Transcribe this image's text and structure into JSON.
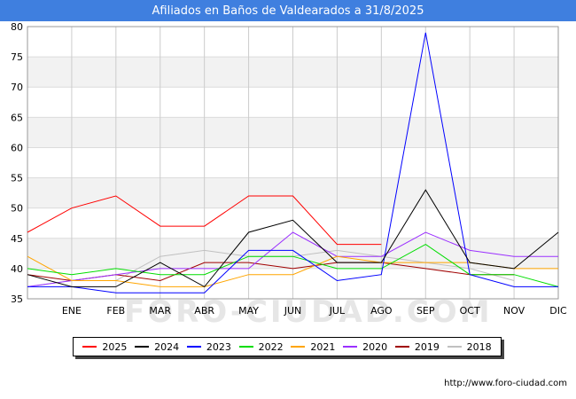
{
  "chart_data": {
    "type": "line",
    "title": "Afiliados en Baños de Valdearados a 31/8/2025",
    "xlabel": "",
    "ylabel": "",
    "categories": [
      "",
      "ENE",
      "FEB",
      "MAR",
      "ABR",
      "MAY",
      "JUN",
      "JUL",
      "AGO",
      "SEP",
      "OCT",
      "NOV",
      "DIC"
    ],
    "ylim": [
      35,
      80
    ],
    "yticks": [
      35,
      40,
      45,
      50,
      55,
      60,
      65,
      70,
      75,
      80
    ],
    "grid": true,
    "legend_position": "bottom",
    "series": [
      {
        "name": "2025",
        "color": "#ff0000",
        "values": [
          46,
          50,
          52,
          47,
          47,
          52,
          52,
          44,
          44,
          null,
          null,
          null,
          null
        ]
      },
      {
        "name": "2024",
        "color": "#000000",
        "values": [
          39,
          37,
          37,
          41,
          37,
          46,
          48,
          41,
          41,
          53,
          41,
          40,
          46
        ]
      },
      {
        "name": "2023",
        "color": "#0000ff",
        "values": [
          37,
          37,
          36,
          36,
          36,
          43,
          43,
          38,
          39,
          79,
          39,
          37,
          37
        ]
      },
      {
        "name": "2022",
        "color": "#00dd00",
        "values": [
          40,
          39,
          40,
          39,
          39,
          42,
          42,
          40,
          40,
          44,
          39,
          39,
          37
        ]
      },
      {
        "name": "2021",
        "color": "#ffa500",
        "values": [
          42,
          38,
          38,
          37,
          37,
          39,
          39,
          42,
          41,
          41,
          41,
          40,
          40
        ]
      },
      {
        "name": "2020",
        "color": "#9b30ff",
        "values": [
          37,
          38,
          39,
          40,
          40,
          40,
          46,
          42,
          42,
          46,
          43,
          42,
          42
        ]
      },
      {
        "name": "2019",
        "color": "#a00000",
        "values": [
          39,
          38,
          39,
          38,
          41,
          41,
          40,
          41,
          41,
          40,
          39,
          39,
          null
        ]
      },
      {
        "name": "2018",
        "color": "#c0c0c0",
        "values": [
          37,
          38,
          38,
          42,
          43,
          42,
          42,
          43,
          42,
          41,
          40,
          38,
          null
        ]
      }
    ],
    "watermark": "FORO-CIUDAD.COM",
    "source_url": "http://www.foro-ciudad.com"
  }
}
